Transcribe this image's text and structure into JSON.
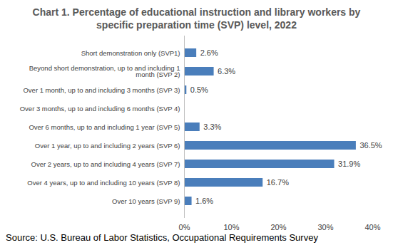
{
  "chart_data": {
    "type": "bar",
    "orientation": "horizontal",
    "title": "Chart 1. Percentage of educational instruction and library workers by specific preparation time (SVP) level, 2022",
    "source": "Source: U.S. Bureau of Labor Statistics, Occupational Requirements Survey",
    "categories": [
      "Short demonstration only (SVP1)",
      "Beyond short demonstration, up to and including 1 month (SVP 2)",
      "Over 1 month, up to and including 3 months (SVP 3)",
      "Over 3 months, up to and including 6 months (SVP 4)",
      "Over 6 months, up to and including 1 year (SVP 5)",
      "Over 1 year, up to and including 2 years (SVP 6)",
      "Over 2 years, up to and including 4 years (SVP 7)",
      "Over 4 years, up to and including 10 years (SVP 8)",
      "Over 10 years (SVP 9)"
    ],
    "values": [
      2.6,
      6.3,
      0.5,
      null,
      3.3,
      36.5,
      31.9,
      16.7,
      1.6
    ],
    "value_labels": [
      "2.6%",
      "6.3%",
      "0.5%",
      null,
      "3.3%",
      "36.5%",
      "31.9%",
      "16.7%",
      "1.6%"
    ],
    "data_labels": true,
    "color": "#4a7ebb",
    "xlim": [
      0,
      40
    ],
    "xticks": [
      {
        "value": 0,
        "label": "0%"
      },
      {
        "value": 10,
        "label": "10%"
      },
      {
        "value": 20,
        "label": "20%"
      },
      {
        "value": 30,
        "label": "30%"
      },
      {
        "value": 40,
        "label": "40%"
      }
    ],
    "grid": false
  }
}
